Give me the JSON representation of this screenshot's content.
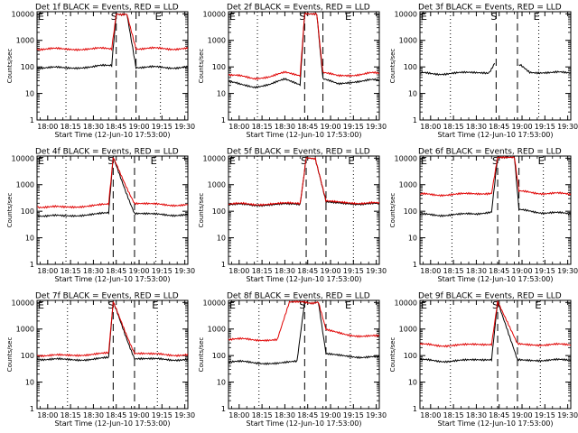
{
  "page": {
    "background": "#ffffff",
    "ink": "#000000",
    "accent": "#e00000"
  },
  "shared": {
    "ylabel": "Counts/sec",
    "xlabel": "Start Time (12-Jun-10 17:53:00)",
    "xtick_labels": [
      "18:00",
      "18:15",
      "18:30",
      "18:45",
      "19:00",
      "19:15",
      "19:30"
    ],
    "ytick_labels": [
      "1",
      "10",
      "100",
      "1000",
      "10000"
    ],
    "yscale": "log",
    "ylim": [
      1,
      12000
    ],
    "marker_letters": {
      "left": "E",
      "mid": "S",
      "right": "E"
    }
  },
  "chart_data": [
    {
      "type": "line",
      "title": "Det 1f BLACK = Events, RED = LLD",
      "vlines_dashed": [
        "18:45",
        "18:58"
      ],
      "vlines_dotted": [
        "18:12",
        "19:14"
      ],
      "series": [
        {
          "color": "#000000",
          "points": [
            [
              "17:53",
              95
            ],
            [
              "18:10",
              92
            ],
            [
              "18:30",
              100
            ],
            [
              "18:42",
              120
            ],
            [
              "18:45",
              10000
            ],
            [
              "18:52",
              10000
            ],
            [
              "18:58",
              100
            ],
            [
              "19:15",
              95
            ],
            [
              "19:32",
              95
            ]
          ]
        },
        {
          "color": "#e00000",
          "points": [
            [
              "17:53",
              480
            ],
            [
              "18:10",
              470
            ],
            [
              "18:30",
              480
            ],
            [
              "18:42",
              500
            ],
            [
              "18:45",
              10000
            ],
            [
              "18:52",
              10000
            ],
            [
              "18:58",
              500
            ],
            [
              "19:15",
              490
            ],
            [
              "19:32",
              480
            ]
          ]
        }
      ]
    },
    {
      "type": "line",
      "title": "Det 2f BLACK = Events, RED = LLD",
      "vlines_dashed": [
        "18:43",
        "18:55"
      ],
      "vlines_dotted": [
        "18:12",
        "19:13"
      ],
      "series": [
        {
          "color": "#000000",
          "points": [
            [
              "17:53",
              28
            ],
            [
              "18:00",
              22
            ],
            [
              "18:10",
              18
            ],
            [
              "18:20",
              22
            ],
            [
              "18:30",
              33
            ],
            [
              "18:40",
              22
            ],
            [
              "18:43",
              10000
            ],
            [
              "18:51",
              10000
            ],
            [
              "18:55",
              35
            ],
            [
              "19:05",
              22
            ],
            [
              "19:15",
              28
            ],
            [
              "19:25",
              33
            ],
            [
              "19:32",
              30
            ]
          ]
        },
        {
          "color": "#e00000",
          "points": [
            [
              "17:53",
              50
            ],
            [
              "18:10",
              38
            ],
            [
              "18:20",
              42
            ],
            [
              "18:30",
              60
            ],
            [
              "18:40",
              48
            ],
            [
              "18:43",
              10000
            ],
            [
              "18:51",
              10000
            ],
            [
              "18:55",
              60
            ],
            [
              "19:05",
              45
            ],
            [
              "19:15",
              50
            ],
            [
              "19:25",
              60
            ],
            [
              "19:32",
              55
            ]
          ]
        }
      ]
    },
    {
      "type": "line",
      "title": "Det 3f BLACK = Events, RED = LLD",
      "vlines_dashed": [
        "18:43",
        "18:57"
      ],
      "vlines_dotted": [
        "18:13",
        "19:11"
      ],
      "series": [
        {
          "color": "#000000",
          "points": [
            [
              "17:53",
              58
            ],
            [
              "18:10",
              55
            ],
            [
              "18:25",
              60
            ],
            [
              "18:38",
              60
            ],
            [
              "18:42",
              130
            ],
            [
              "18:43",
              null
            ],
            [
              "18:57",
              null
            ],
            [
              "18:58",
              120
            ],
            [
              "19:05",
              65
            ],
            [
              "19:20",
              60
            ],
            [
              "19:32",
              62
            ]
          ]
        }
      ]
    },
    {
      "type": "line",
      "title": "Det 4f BLACK = Events, RED = LLD",
      "vlines_dashed": [
        "18:43",
        "18:57"
      ],
      "vlines_dotted": [
        "18:12",
        "19:11"
      ],
      "series": [
        {
          "color": "#000000",
          "points": [
            [
              "17:53",
              70
            ],
            [
              "18:10",
              65
            ],
            [
              "18:25",
              75
            ],
            [
              "18:40",
              82
            ],
            [
              "18:43",
              10000
            ],
            [
              "18:57",
              80
            ],
            [
              "19:10",
              75
            ],
            [
              "19:32",
              72
            ]
          ]
        },
        {
          "color": "#e00000",
          "points": [
            [
              "17:53",
              150
            ],
            [
              "18:10",
              140
            ],
            [
              "18:25",
              160
            ],
            [
              "18:40",
              175
            ],
            [
              "18:43",
              10000
            ],
            [
              "18:57",
              190
            ],
            [
              "19:10",
              180
            ],
            [
              "19:32",
              170
            ]
          ]
        }
      ]
    },
    {
      "type": "line",
      "title": "Det 5f BLACK = Events, RED = LLD",
      "vlines_dashed": [
        "18:44",
        "18:57"
      ],
      "vlines_dotted": [
        "18:12",
        "19:15"
      ],
      "series": [
        {
          "color": "#000000",
          "points": [
            [
              "17:53",
              180
            ],
            [
              "18:10",
              175
            ],
            [
              "18:25",
              178
            ],
            [
              "18:40",
              185
            ],
            [
              "18:44",
              10000
            ],
            [
              "18:50",
              10000
            ],
            [
              "18:57",
              210
            ],
            [
              "19:15",
              195
            ],
            [
              "19:32",
              185
            ]
          ]
        },
        {
          "color": "#e00000",
          "points": [
            [
              "17:53",
              190
            ],
            [
              "18:10",
              185
            ],
            [
              "18:25",
              190
            ],
            [
              "18:40",
              200
            ],
            [
              "18:44",
              10000
            ],
            [
              "18:50",
              10000
            ],
            [
              "18:57",
              230
            ],
            [
              "19:15",
              210
            ],
            [
              "19:32",
              195
            ]
          ]
        }
      ]
    },
    {
      "type": "line",
      "title": "Det 6f BLACK = Events, RED = LLD",
      "vlines_dashed": [
        "18:44",
        "18:58"
      ],
      "vlines_dotted": [
        "18:14",
        "19:14"
      ],
      "series": [
        {
          "color": "#000000",
          "points": [
            [
              "17:53",
              75
            ],
            [
              "18:10",
              72
            ],
            [
              "18:30",
              78
            ],
            [
              "18:40",
              100
            ],
            [
              "18:44",
              10000
            ],
            [
              "18:55",
              10000
            ],
            [
              "18:58",
              110
            ],
            [
              "19:15",
              88
            ],
            [
              "19:32",
              82
            ]
          ]
        },
        {
          "color": "#e00000",
          "points": [
            [
              "17:53",
              430
            ],
            [
              "18:10",
              420
            ],
            [
              "18:30",
              450
            ],
            [
              "18:40",
              500
            ],
            [
              "18:44",
              10000
            ],
            [
              "18:55",
              10000
            ],
            [
              "18:58",
              550
            ],
            [
              "19:15",
              470
            ],
            [
              "19:32",
              450
            ]
          ]
        }
      ]
    },
    {
      "type": "line",
      "title": "Det 7f BLACK = Events, RED = LLD",
      "vlines_dashed": [
        "18:43",
        "18:57"
      ],
      "vlines_dotted": [
        "18:13",
        "19:12"
      ],
      "series": [
        {
          "color": "#000000",
          "points": [
            [
              "17:53",
              75
            ],
            [
              "18:10",
              70
            ],
            [
              "18:25",
              72
            ],
            [
              "18:40",
              80
            ],
            [
              "18:43",
              10000
            ],
            [
              "18:57",
              75
            ],
            [
              "19:10",
              72
            ],
            [
              "19:32",
              70
            ]
          ]
        },
        {
          "color": "#e00000",
          "points": [
            [
              "17:53",
              105
            ],
            [
              "18:10",
              100
            ],
            [
              "18:25",
              110
            ],
            [
              "18:40",
              120
            ],
            [
              "18:43",
              10000
            ],
            [
              "18:57",
              120
            ],
            [
              "19:10",
              110
            ],
            [
              "19:32",
              105
            ]
          ]
        }
      ]
    },
    {
      "type": "line",
      "title": "Det 8f BLACK = Events, RED = LLD",
      "vlines_dashed": [
        "18:43",
        "18:57"
      ],
      "vlines_dotted": [
        "18:13",
        "19:13"
      ],
      "series": [
        {
          "color": "#000000",
          "points": [
            [
              "17:53",
              60
            ],
            [
              "18:10",
              55
            ],
            [
              "18:25",
              50
            ],
            [
              "18:38",
              58
            ],
            [
              "18:43",
              10000
            ],
            [
              "18:52",
              10000
            ],
            [
              "18:57",
              110
            ],
            [
              "19:15",
              92
            ],
            [
              "19:32",
              85
            ]
          ]
        },
        {
          "color": "#e00000",
          "points": [
            [
              "17:53",
              420
            ],
            [
              "18:10",
              400
            ],
            [
              "18:25",
              390
            ],
            [
              "18:33",
              10000
            ],
            [
              "18:43",
              10000
            ],
            [
              "18:52",
              10000
            ],
            [
              "18:57",
              900
            ],
            [
              "19:10",
              600
            ],
            [
              "19:32",
              520
            ]
          ]
        }
      ]
    },
    {
      "type": "line",
      "title": "Det 9f BLACK = Events, RED = LLD",
      "vlines_dashed": [
        "18:44",
        "18:57"
      ],
      "vlines_dotted": [
        "18:13",
        "19:12"
      ],
      "series": [
        {
          "color": "#000000",
          "points": [
            [
              "17:53",
              68
            ],
            [
              "18:10",
              62
            ],
            [
              "18:25",
              65
            ],
            [
              "18:40",
              75
            ],
            [
              "18:44",
              10000
            ],
            [
              "18:57",
              70
            ],
            [
              "19:10",
              68
            ],
            [
              "19:32",
              67
            ]
          ]
        },
        {
          "color": "#e00000",
          "points": [
            [
              "17:53",
              260
            ],
            [
              "18:10",
              240
            ],
            [
              "18:25",
              250
            ],
            [
              "18:40",
              280
            ],
            [
              "18:44",
              10000
            ],
            [
              "18:57",
              280
            ],
            [
              "19:10",
              260
            ],
            [
              "19:32",
              255
            ]
          ]
        }
      ]
    }
  ]
}
